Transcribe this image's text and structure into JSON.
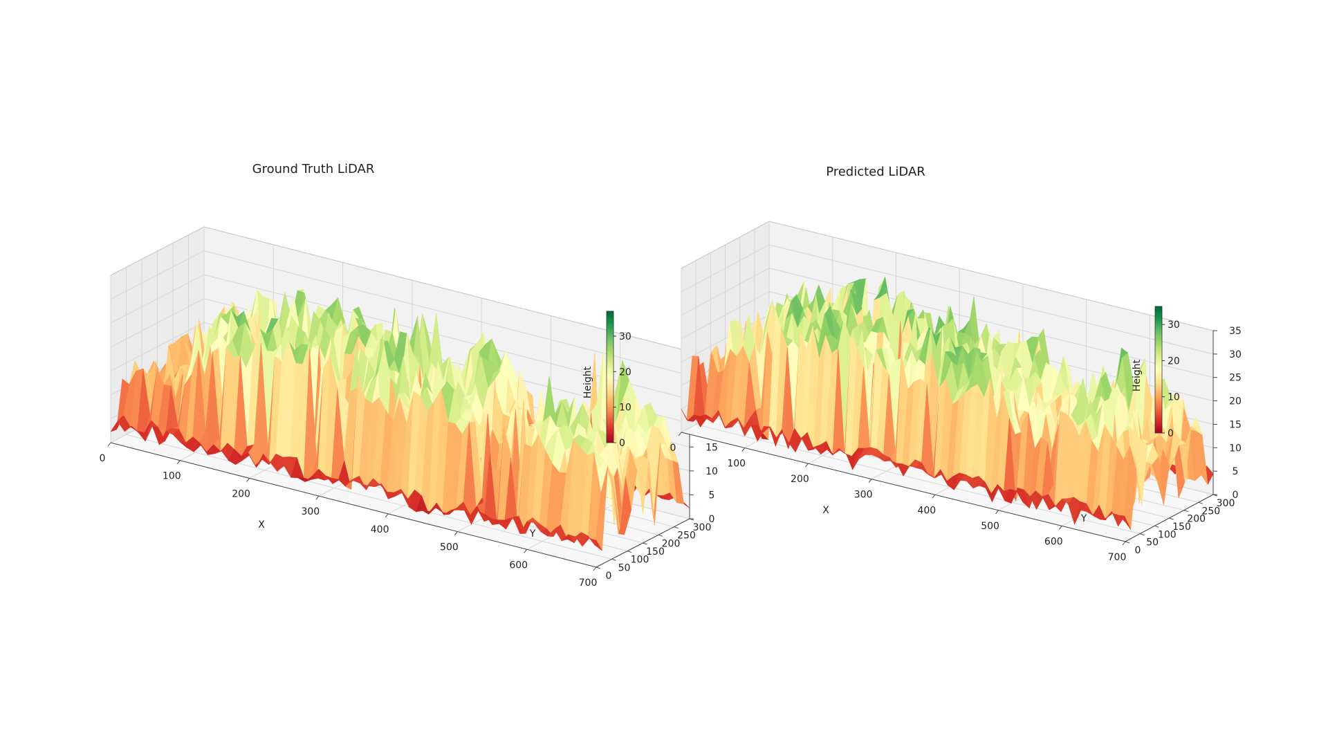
{
  "chart_data": [
    {
      "type": "surface3d",
      "title": "Ground Truth LiDAR",
      "xlabel": "X",
      "ylabel": "Y",
      "zlabel": "",
      "xlim": [
        0,
        700
      ],
      "ylim": [
        0,
        300
      ],
      "zlim": [
        0,
        35
      ],
      "x_ticks": [
        "0",
        "100",
        "200",
        "300",
        "400",
        "500",
        "600",
        "700"
      ],
      "y_ticks": [
        "0",
        "50",
        "100",
        "150",
        "200",
        "250",
        "300"
      ],
      "z_ticks": [
        "0",
        "5",
        "10",
        "15",
        "20",
        "25",
        "30",
        "35"
      ],
      "colormap": "RdYlGn",
      "colorbar": {
        "label": "Height",
        "range": [
          0,
          37
        ],
        "ticks": [
          "0",
          "10",
          "20",
          "30"
        ]
      },
      "grid": true,
      "height_profile_x": [
        0,
        50,
        100,
        150,
        200,
        250,
        300,
        350,
        400,
        450,
        500,
        550,
        600,
        650,
        700
      ],
      "height_profile_mean": [
        9,
        12,
        21,
        23,
        24,
        22,
        23,
        24,
        21,
        22,
        16,
        15,
        23,
        20,
        14
      ],
      "height_profile_peak": [
        14,
        22,
        28,
        31,
        32,
        28,
        32,
        33,
        30,
        31,
        22,
        25,
        37,
        25,
        20
      ]
    },
    {
      "type": "surface3d",
      "title": "Predicted LiDAR",
      "xlabel": "X",
      "ylabel": "Y",
      "zlabel": "",
      "xlim": [
        0,
        700
      ],
      "ylim": [
        0,
        300
      ],
      "zlim": [
        0,
        35
      ],
      "x_ticks": [
        "0",
        "100",
        "200",
        "300",
        "400",
        "500",
        "600",
        "700"
      ],
      "y_ticks": [
        "0",
        "50",
        "100",
        "150",
        "200",
        "250",
        "300"
      ],
      "z_ticks": [
        "0",
        "5",
        "10",
        "15",
        "20",
        "25",
        "30",
        "35"
      ],
      "colormap": "RdYlGn",
      "colorbar": {
        "label": "Height",
        "range": [
          0,
          35
        ],
        "ticks": [
          "0",
          "10",
          "20",
          "30"
        ]
      },
      "grid": true,
      "height_profile_x": [
        0,
        50,
        100,
        150,
        200,
        250,
        300,
        350,
        400,
        450,
        500,
        550,
        600,
        650,
        700
      ],
      "height_profile_mean": [
        9,
        14,
        22,
        24,
        24,
        23,
        24,
        25,
        22,
        22,
        17,
        17,
        23,
        18,
        13
      ],
      "height_profile_peak": [
        15,
        24,
        29,
        31,
        31,
        29,
        31,
        32,
        29,
        30,
        23,
        24,
        32,
        22,
        18
      ]
    }
  ]
}
